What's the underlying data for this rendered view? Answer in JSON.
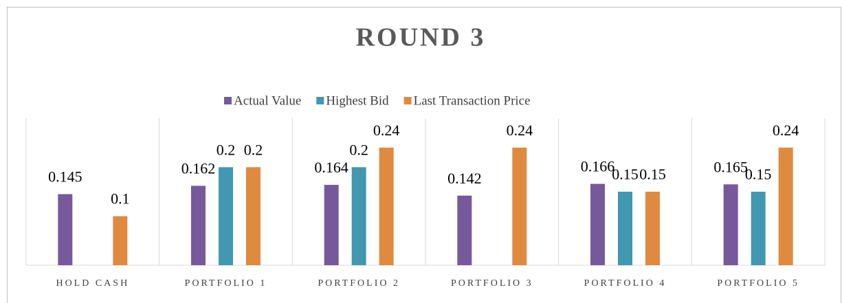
{
  "chart_data": {
    "type": "bar",
    "title": "ROUND 3",
    "categories": [
      "HOLD CASH",
      "PORTFOLIO 1",
      "PORTFOLIO 2",
      "PORTFOLIO 3",
      "PORTFOLIO 4",
      "PORTFOLIO 5"
    ],
    "series": [
      {
        "name": "Actual Value",
        "color": "#76599a",
        "values": [
          0.145,
          0.162,
          0.164,
          0.142,
          0.166,
          0.165
        ]
      },
      {
        "name": "Highest Bid",
        "color": "#4198b0",
        "values": [
          null,
          0.2,
          0.2,
          null,
          0.15,
          0.15
        ]
      },
      {
        "name": "Last Transaction Price",
        "color": "#e08a3f",
        "values": [
          0.1,
          0.2,
          0.24,
          0.24,
          0.15,
          0.24
        ]
      }
    ],
    "ylim": [
      0,
      0.3
    ],
    "legend": "top"
  }
}
